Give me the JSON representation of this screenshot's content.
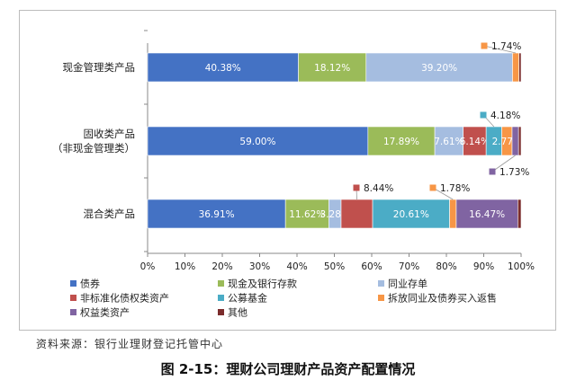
{
  "chart_data": {
    "type": "bar",
    "orientation": "horizontal",
    "stacked": true,
    "categories": [
      "现金管理类产品",
      "固收类产品（非现金管理类）",
      "混合类产品"
    ],
    "category_lines": [
      [
        "现金管理类产品"
      ],
      [
        "固收类产品",
        "（非现金管理类）"
      ],
      [
        "混合类产品"
      ]
    ],
    "series": [
      {
        "name": "债券",
        "color": "#4472C4",
        "values": [
          40.38,
          59.0,
          36.91
        ],
        "labels": [
          "40.38%",
          "59.00%",
          "36.91%"
        ]
      },
      {
        "name": "现金及银行存款",
        "color": "#9BBB59",
        "values": [
          18.12,
          17.89,
          11.62
        ],
        "labels": [
          "18.12%",
          "17.89%",
          "11.62%"
        ]
      },
      {
        "name": "同业存单",
        "color": "#A5BDE0",
        "values": [
          39.2,
          7.61,
          3.28
        ],
        "labels": [
          "39.20%",
          "7.61%",
          "3.28%"
        ]
      },
      {
        "name": "非标准化债权类资产",
        "color": "#C0504D",
        "values": [
          0.0,
          6.14,
          8.44
        ],
        "labels": [
          "",
          "6.14%",
          ""
        ]
      },
      {
        "name": "公募基金",
        "color": "#4BACC6",
        "values": [
          0.0,
          4.18,
          20.61
        ],
        "labels": [
          "",
          "",
          "20.61%"
        ]
      },
      {
        "name": "拆放同业及债券买入返售",
        "color": "#F79646",
        "values": [
          1.74,
          2.77,
          1.78
        ],
        "labels": [
          "",
          "2.77%",
          ""
        ]
      },
      {
        "name": "权益类资产",
        "color": "#8064A2",
        "values": [
          0.0,
          1.73,
          16.47
        ],
        "labels": [
          "",
          "",
          "16.47%"
        ]
      },
      {
        "name": "其他",
        "color": "#7B2C2C",
        "values": [
          0.56,
          0.68,
          0.89
        ],
        "labels": [
          "",
          "",
          ""
        ]
      }
    ],
    "callouts": [
      {
        "category": 0,
        "series": 5,
        "text": "1.74%"
      },
      {
        "category": 1,
        "series": 4,
        "text": "4.18%"
      },
      {
        "category": 1,
        "series": 6,
        "text": "1.73%"
      },
      {
        "category": 2,
        "series": 3,
        "text": "8.44%"
      },
      {
        "category": 2,
        "series": 5,
        "text": "1.78%"
      }
    ],
    "xlim": [
      0,
      100
    ],
    "xticks": [
      "0%",
      "10%",
      "20%",
      "30%",
      "40%",
      "50%",
      "60%",
      "70%",
      "80%",
      "90%",
      "100%"
    ],
    "legend_position": "bottom",
    "grid": false
  },
  "source": "资料来源：银行业理财登记托管中心",
  "caption": "图 2-15：理财公司理财产品资产配置情况"
}
